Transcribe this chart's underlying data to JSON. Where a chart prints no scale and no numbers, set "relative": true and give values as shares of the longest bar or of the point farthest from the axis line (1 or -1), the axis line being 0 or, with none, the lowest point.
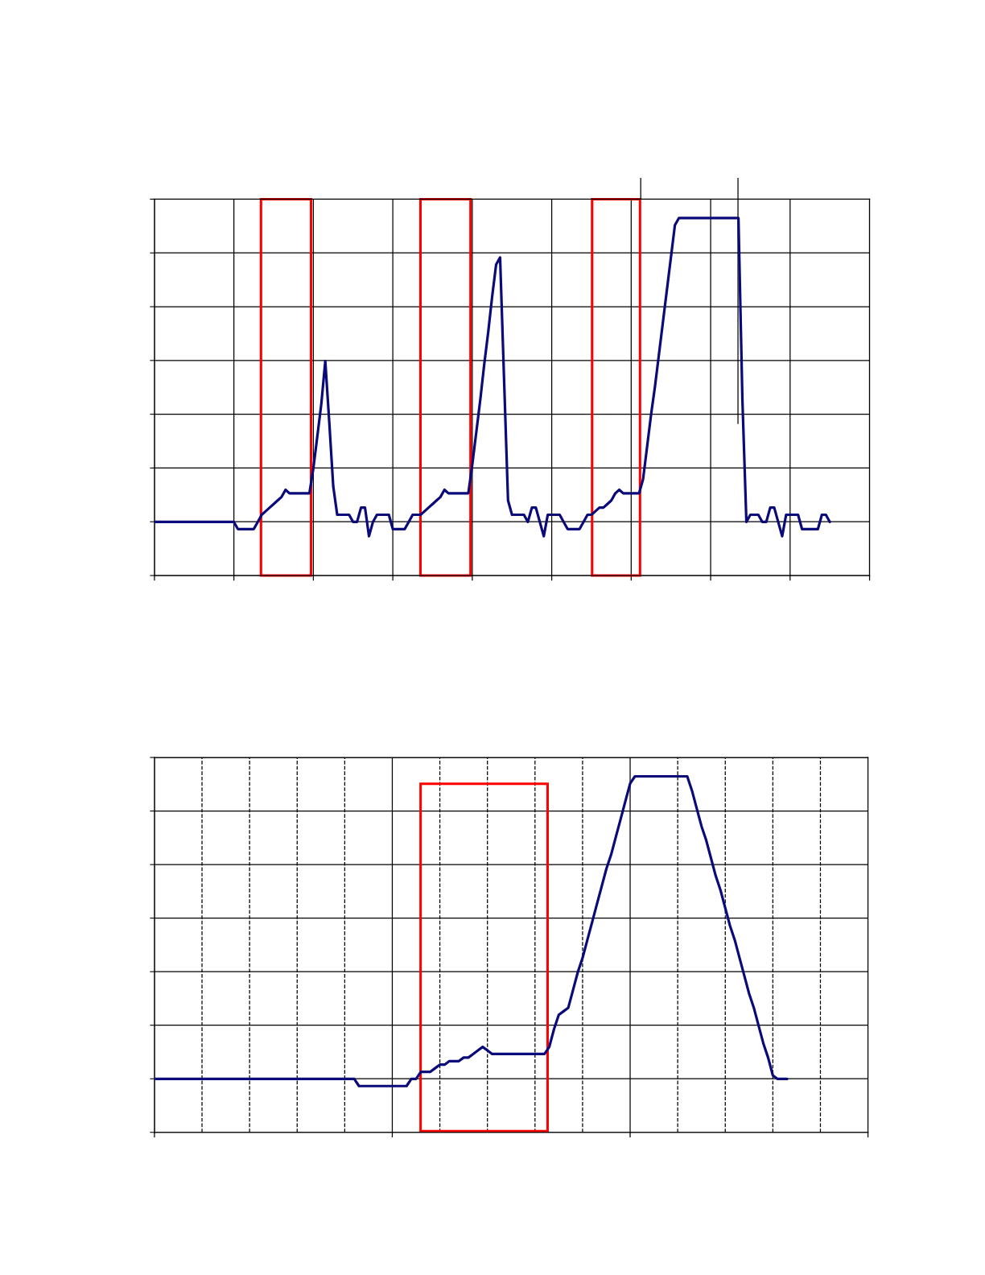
{
  "chart_data": [
    {
      "type": "line",
      "relative": true,
      "grid": true,
      "marker": "none",
      "line_style": "solid",
      "categories": [
        null,
        null,
        null,
        null,
        null,
        null,
        null,
        null,
        null,
        null,
        null,
        null,
        null,
        null,
        null,
        null,
        null,
        null,
        null,
        null,
        null,
        null,
        null,
        null,
        null,
        null,
        null,
        null,
        null,
        null,
        null,
        null,
        null,
        null,
        null,
        null,
        null,
        null,
        null,
        null,
        null,
        null,
        null,
        null,
        null,
        null,
        null,
        null,
        null,
        null,
        null,
        null,
        null,
        null,
        null,
        null,
        null,
        null,
        null,
        null,
        null,
        null,
        null,
        null,
        null,
        null,
        null,
        null,
        null,
        null,
        null,
        null,
        null,
        null,
        null,
        null,
        null,
        null,
        null,
        null,
        null,
        null,
        null,
        null,
        null,
        null,
        null,
        null,
        null,
        null,
        null,
        null,
        null,
        null,
        null,
        null,
        null,
        null,
        null,
        null,
        null,
        null,
        null,
        null,
        null,
        null,
        null,
        null,
        null,
        null,
        null,
        null,
        null,
        null,
        null,
        null,
        null,
        null,
        null,
        null,
        null,
        null,
        null,
        null,
        null,
        null,
        null,
        null,
        null,
        null,
        null,
        null,
        null,
        null,
        null,
        null,
        null,
        null,
        null,
        null,
        null,
        null,
        null,
        null,
        null,
        null,
        null,
        null,
        null,
        null,
        null,
        null,
        null,
        null,
        null,
        null,
        null,
        null,
        null,
        null,
        null,
        null,
        null,
        null,
        null,
        null,
        null,
        null,
        null,
        null,
        null,
        null,
        null,
        null,
        null,
        null,
        null,
        null,
        null,
        null,
        null
      ],
      "series": [
        {
          "color": "#0a0a7a",
          "values": [
            0.15,
            0.15,
            0.15,
            0.15,
            0.15,
            0.15,
            0.15,
            0.15,
            0.15,
            0.15,
            0.15,
            0.15,
            0.15,
            0.15,
            0.15,
            0.15,
            0.15,
            0.15,
            0.15,
            0.15,
            0.15,
            0.13,
            0.13,
            0.13,
            0.13,
            0.13,
            0.15,
            0.17,
            0.18,
            0.19,
            0.2,
            0.21,
            0.22,
            0.24,
            0.23,
            0.23,
            0.23,
            0.23,
            0.23,
            0.23,
            0.3,
            0.39,
            0.48,
            0.6,
            0.43,
            0.25,
            0.17,
            0.17,
            0.17,
            0.17,
            0.15,
            0.15,
            0.19,
            0.19,
            0.11,
            0.15,
            0.17,
            0.17,
            0.17,
            0.17,
            0.13,
            0.13,
            0.13,
            0.13,
            0.15,
            0.17,
            0.17,
            0.17,
            0.18,
            0.19,
            0.2,
            0.21,
            0.22,
            0.24,
            0.23,
            0.23,
            0.23,
            0.23,
            0.23,
            0.23,
            0.31,
            0.4,
            0.49,
            0.59,
            0.68,
            0.78,
            0.87,
            0.89,
            0.55,
            0.21,
            0.17,
            0.17,
            0.17,
            0.17,
            0.15,
            0.19,
            0.19,
            0.15,
            0.11,
            0.17,
            0.17,
            0.17,
            0.17,
            0.15,
            0.13,
            0.13,
            0.13,
            0.13,
            0.15,
            0.17,
            0.17,
            0.18,
            0.19,
            0.19,
            0.2,
            0.21,
            0.23,
            0.24,
            0.23,
            0.23,
            0.23,
            0.23,
            0.23,
            0.27,
            0.36,
            0.45,
            0.53,
            0.62,
            0.71,
            0.8,
            0.89,
            0.98,
            1.0,
            1.0,
            1.0,
            1.0,
            1.0,
            1.0,
            1.0,
            1.0,
            1.0,
            1.0,
            1.0,
            1.0,
            1.0,
            1.0,
            1.0,
            1.0,
            0.49,
            0.15,
            0.17,
            0.17,
            0.17,
            0.15,
            0.15,
            0.19,
            0.19,
            0.15,
            0.11,
            0.17,
            0.17,
            0.17,
            0.17,
            0.13,
            0.13,
            0.13,
            0.13,
            0.13,
            0.17,
            0.17,
            0.15,
            null,
            null,
            null,
            null,
            null,
            null,
            null,
            null,
            null,
            null
          ]
        }
      ]
    },
    {
      "type": "line",
      "relative": true,
      "grid": true,
      "marker": "none",
      "line_style": "solid",
      "categories": [
        null,
        null,
        null,
        null,
        null,
        null,
        null,
        null,
        null,
        null,
        null,
        null,
        null,
        null,
        null,
        null,
        null,
        null,
        null,
        null,
        null,
        null,
        null,
        null,
        null,
        null,
        null,
        null,
        null,
        null,
        null,
        null,
        null,
        null,
        null,
        null,
        null,
        null,
        null,
        null,
        null,
        null,
        null,
        null,
        null,
        null,
        null,
        null,
        null,
        null,
        null,
        null,
        null,
        null,
        null,
        null,
        null,
        null,
        null,
        null,
        null,
        null,
        null,
        null,
        null,
        null,
        null,
        null,
        null,
        null,
        null,
        null,
        null,
        null,
        null,
        null,
        null,
        null,
        null,
        null,
        null,
        null,
        null,
        null,
        null,
        null,
        null,
        null,
        null,
        null,
        null,
        null,
        null,
        null,
        null,
        null,
        null,
        null,
        null,
        null,
        null,
        null,
        null,
        null,
        null,
        null,
        null,
        null,
        null,
        null,
        null,
        null,
        null,
        null,
        null,
        null,
        null,
        null,
        null,
        null,
        null,
        null,
        null,
        null,
        null,
        null,
        null,
        null,
        null,
        null,
        null,
        null,
        null,
        null,
        null,
        null,
        null,
        null,
        null,
        null,
        null,
        null,
        null,
        null,
        null,
        null,
        null,
        null,
        null,
        null,
        null
      ],
      "series": [
        {
          "color": "#0a0a7a",
          "values": [
            0.15,
            0.15,
            0.15,
            0.15,
            0.15,
            0.15,
            0.15,
            0.15,
            0.15,
            0.15,
            0.15,
            0.15,
            0.15,
            0.15,
            0.15,
            0.15,
            0.15,
            0.15,
            0.15,
            0.15,
            0.15,
            0.15,
            0.15,
            0.15,
            0.15,
            0.15,
            0.15,
            0.15,
            0.15,
            0.15,
            0.15,
            0.15,
            0.15,
            0.15,
            0.15,
            0.15,
            0.15,
            0.15,
            0.15,
            0.15,
            0.15,
            0.15,
            0.15,
            0.13,
            0.13,
            0.13,
            0.13,
            0.13,
            0.13,
            0.13,
            0.13,
            0.13,
            0.13,
            0.13,
            0.15,
            0.15,
            0.17,
            0.17,
            0.17,
            0.18,
            0.19,
            0.19,
            0.2,
            0.2,
            0.2,
            0.21,
            0.21,
            0.22,
            0.23,
            0.24,
            0.23,
            0.22,
            0.22,
            0.22,
            0.22,
            0.22,
            0.22,
            0.22,
            0.22,
            0.22,
            0.22,
            0.22,
            0.22,
            0.24,
            0.29,
            0.33,
            0.34,
            0.35,
            0.4,
            0.45,
            0.49,
            0.54,
            0.59,
            0.64,
            0.69,
            0.74,
            0.78,
            0.83,
            0.88,
            0.93,
            0.98,
            1.0,
            1.0,
            1.0,
            1.0,
            1.0,
            1.0,
            1.0,
            1.0,
            1.0,
            1.0,
            1.0,
            1.0,
            0.96,
            0.91,
            0.86,
            0.82,
            0.77,
            0.72,
            0.68,
            0.63,
            0.58,
            0.54,
            0.49,
            0.44,
            0.39,
            0.35,
            0.3,
            0.25,
            0.21,
            0.16,
            0.15,
            0.15,
            0.15,
            null,
            null,
            null,
            null,
            null,
            null,
            null,
            null,
            null,
            null,
            null,
            null,
            null,
            null,
            null,
            null,
            null
          ]
        }
      ]
    }
  ]
}
